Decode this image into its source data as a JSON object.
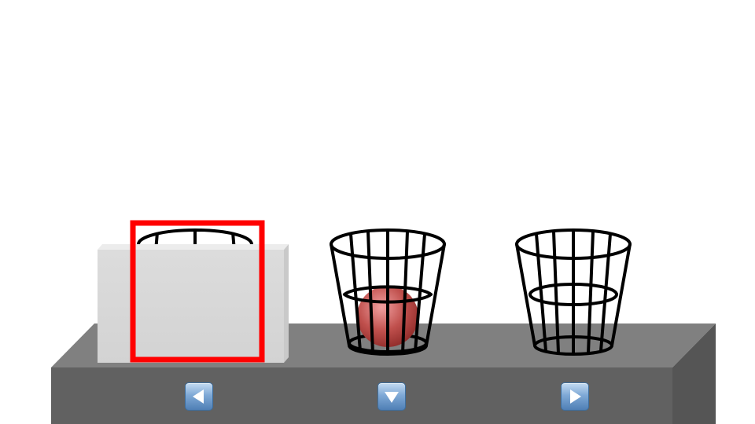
{
  "scene": {
    "background_color": "#ffffff",
    "table_top_color": "#808080",
    "table_front_color": "#616161",
    "table_side_color": "#555555",
    "cover_box_color": "#d9d9d9",
    "ball_color": "#c0392b",
    "selection_color": "#ff0000"
  },
  "baskets": [
    {
      "position": "left",
      "covered": true,
      "selected": true,
      "contains_ball": false
    },
    {
      "position": "middle",
      "covered": false,
      "selected": false,
      "contains_ball": true
    },
    {
      "position": "right",
      "covered": false,
      "selected": false,
      "contains_ball": false
    }
  ],
  "controls": {
    "left_button_icon": "left-arrow-icon",
    "down_button_icon": "down-arrow-icon",
    "right_button_icon": "right-arrow-icon"
  }
}
